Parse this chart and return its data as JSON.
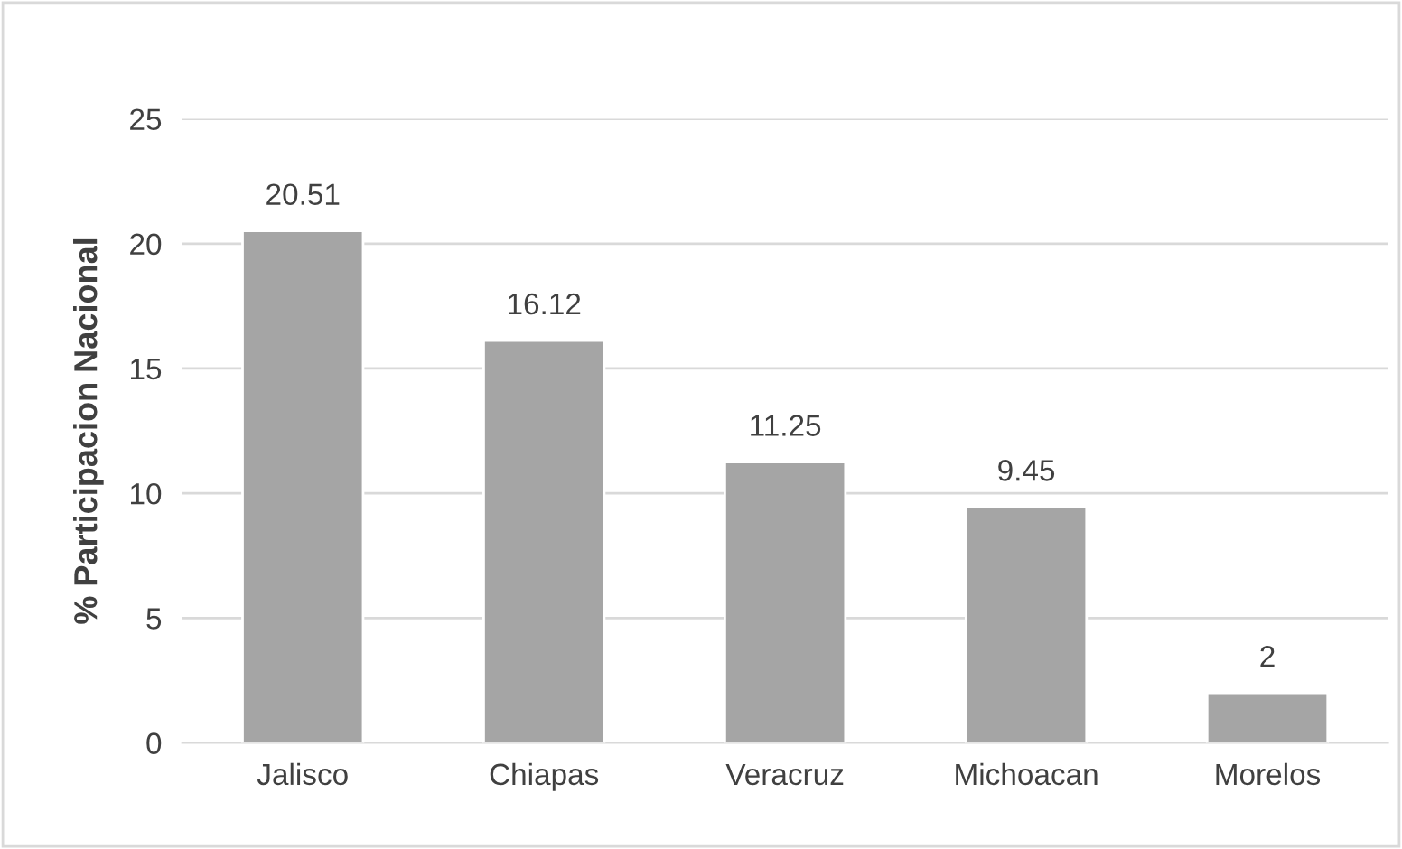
{
  "chart_data": {
    "type": "bar",
    "ylabel": "% Participacion Nacional",
    "categories": [
      "Jalisco",
      "Chiapas",
      "Veracruz",
      "Michoacan",
      "Morelos"
    ],
    "values": [
      20.51,
      16.12,
      11.25,
      9.45,
      2
    ],
    "color": "#a5a5a5",
    "ylim": [
      0,
      25
    ],
    "yticks": [
      0,
      5,
      10,
      15,
      20,
      25
    ],
    "grid": "y",
    "data_labels": true
  }
}
